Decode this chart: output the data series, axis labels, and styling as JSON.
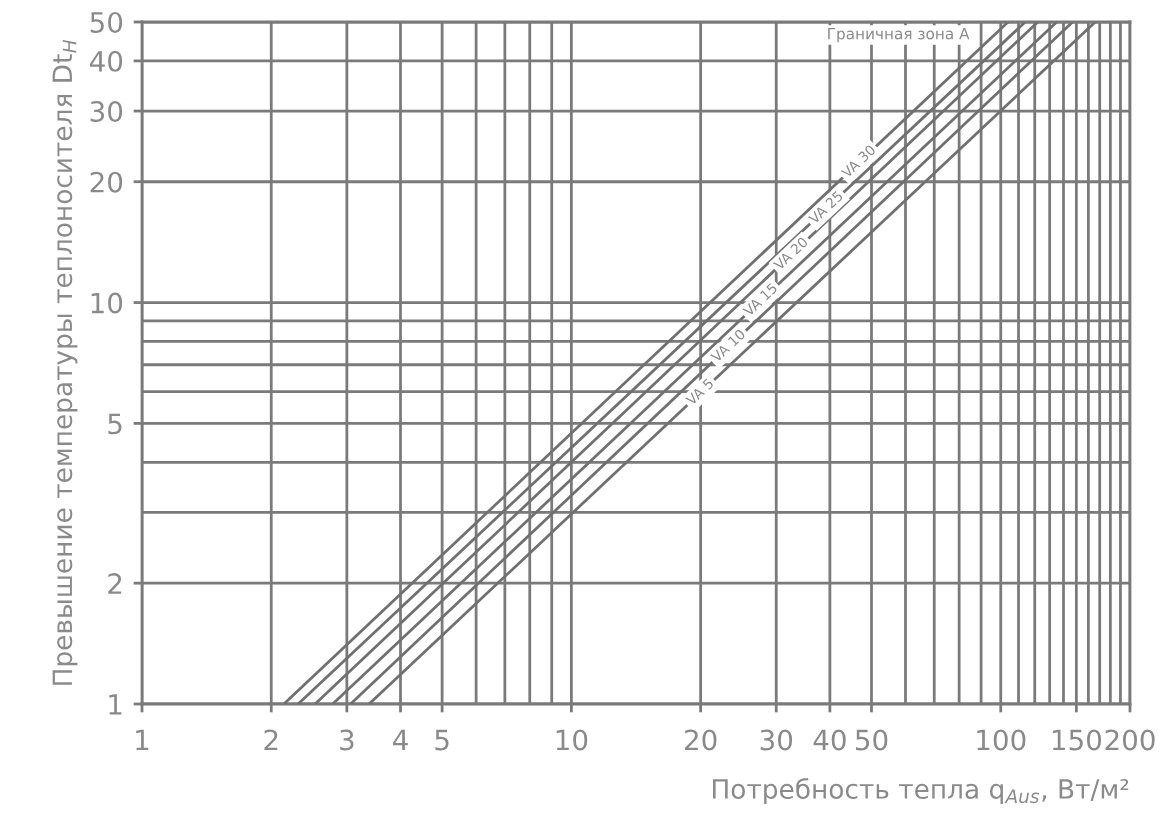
{
  "chart_data": {
    "type": "line",
    "xlabel": "Потребность тепла q$_{Aus}$, Вт/м²",
    "ylabel": "Превышение температуры теплоносителя Dt$_{H}$",
    "log": "xy",
    "xlim": [
      1,
      200
    ],
    "ylim": [
      1,
      50
    ],
    "xticks": [
      1,
      2,
      3,
      4,
      5,
      {
        "value": 6,
        "label": null
      },
      {
        "value": 7,
        "label": null
      },
      {
        "value": 8,
        "label": null
      },
      {
        "value": 9,
        "label": null
      },
      10,
      20,
      30,
      40,
      50,
      {
        "value": 60,
        "label": null
      },
      {
        "value": 70,
        "label": null
      },
      {
        "value": 80,
        "label": null
      },
      {
        "value": 90,
        "label": null
      },
      100,
      {
        "value": 110,
        "label": null
      },
      {
        "value": 120,
        "label": null
      },
      {
        "value": 130,
        "label": null
      },
      {
        "value": 140,
        "label": null
      },
      150,
      {
        "value": 160,
        "label": null
      },
      {
        "value": 170,
        "label": null
      },
      {
        "value": 180,
        "label": null
      },
      {
        "value": 190,
        "label": null
      },
      200
    ],
    "yticks": [
      1,
      2,
      {
        "value": 3,
        "label": null
      },
      {
        "value": 4,
        "label": null
      },
      5,
      {
        "value": 6,
        "label": null
      },
      {
        "value": 7,
        "label": null
      },
      {
        "value": 8,
        "label": null
      },
      {
        "value": 9,
        "label": null
      },
      10,
      20,
      30,
      40,
      50
    ],
    "grid": true,
    "line_style": "solid",
    "annotations": [
      "Граничная зона A"
    ],
    "series": [
      {
        "name": "VA 5",
        "color": "#707070",
        "x": [
          3.38,
          166
        ],
        "values": [
          1,
          50
        ]
      },
      {
        "name": "VA 10",
        "color": "#707070",
        "x": [
          3.06,
          147
        ],
        "values": [
          1,
          50
        ]
      },
      {
        "name": "VA 15",
        "color": "#707070",
        "x": [
          2.78,
          135
        ],
        "values": [
          1,
          50
        ]
      },
      {
        "name": "VA 20",
        "color": "#707070",
        "x": [
          2.53,
          122
        ],
        "values": [
          1,
          50
        ]
      },
      {
        "name": "VA 25",
        "color": "#707070",
        "x": [
          2.31,
          114
        ],
        "values": [
          1,
          50
        ]
      },
      {
        "name": "VA 30",
        "color": "#707070",
        "x": [
          2.14,
          104
        ],
        "values": [
          1,
          50
        ]
      }
    ]
  }
}
